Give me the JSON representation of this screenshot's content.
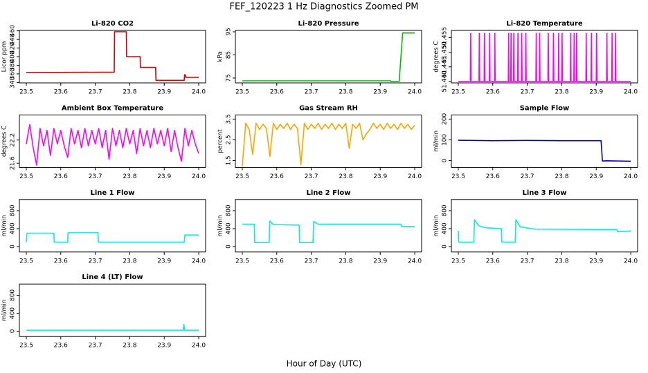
{
  "title": "FEF_120223  1 Hz Diagnostics Zoomed PM",
  "x_label": "Hour of Day (UTC)",
  "chart_data": [
    {
      "type": "line",
      "title": "Li-820 CO2",
      "y_label": "Licor ppm",
      "color": "#dd0000",
      "x": [
        23.5,
        23.755,
        23.756,
        23.79,
        23.791,
        23.83,
        23.831,
        23.875,
        23.876,
        23.958,
        23.959,
        23.961,
        23.962,
        24.0
      ],
      "values": [
        363,
        364,
        458,
        458,
        400,
        400,
        375,
        375,
        345,
        345,
        358,
        358,
        352,
        352
      ],
      "xlim": [
        23.48,
        24.02
      ],
      "xticks": [
        23.5,
        23.6,
        23.7,
        23.8,
        23.9,
        {
          "value": 24,
          "label": "24.0"
        }
      ],
      "ylim": [
        339,
        461
      ],
      "yticks": [
        340,
        360,
        380,
        400,
        420,
        440,
        460
      ]
    },
    {
      "type": "line",
      "title": "Li-820 Pressure",
      "y_label": "kPa",
      "color": "#00bb00",
      "x": [
        23.5,
        23.93,
        23.931,
        23.955,
        23.96,
        23.965,
        24.0
      ],
      "values": [
        73.8,
        73.8,
        73.5,
        73.5,
        84,
        94.5,
        94.5
      ],
      "xlim": [
        23.48,
        24.02
      ],
      "xticks": [
        23.5,
        23.6,
        23.7,
        23.8,
        23.9,
        {
          "value": 24,
          "label": "24.0"
        }
      ],
      "ylim": [
        72.9,
        95.6
      ],
      "yticks": [
        75,
        85,
        95
      ]
    },
    {
      "type": "line",
      "title": "Li-820 Temperature",
      "y_label": "degrees C",
      "color": "#ff00ff",
      "x": [
        23.5,
        23.535,
        23.536,
        23.537,
        23.56,
        23.561,
        23.562,
        23.575,
        23.576,
        23.577,
        23.59,
        23.591,
        23.592,
        23.605,
        23.606,
        23.607,
        23.645,
        23.646,
        23.647,
        23.652,
        23.653,
        23.654,
        23.66,
        23.661,
        23.662,
        23.672,
        23.673,
        23.674,
        23.683,
        23.684,
        23.685,
        23.695,
        23.696,
        23.697,
        23.725,
        23.726,
        23.727,
        23.735,
        23.736,
        23.737,
        23.76,
        23.761,
        23.762,
        23.775,
        23.776,
        23.777,
        23.79,
        23.791,
        23.792,
        23.8,
        23.801,
        23.802,
        23.825,
        23.826,
        23.827,
        23.835,
        23.836,
        23.837,
        23.842,
        23.843,
        23.844,
        23.87,
        23.871,
        23.872,
        23.885,
        23.886,
        23.887,
        23.9,
        23.901,
        23.902,
        23.93,
        23.931,
        23.932,
        23.945,
        23.946,
        23.947,
        23.955,
        23.956,
        23.957,
        24.0
      ],
      "values": [
        51.44,
        51.44,
        51.4565,
        51.44,
        51.44,
        51.4565,
        51.44,
        51.44,
        51.4565,
        51.44,
        51.44,
        51.4565,
        51.44,
        51.44,
        51.4565,
        51.44,
        51.44,
        51.4565,
        51.44,
        51.44,
        51.4565,
        51.44,
        51.44,
        51.4565,
        51.44,
        51.44,
        51.4565,
        51.44,
        51.44,
        51.4565,
        51.44,
        51.44,
        51.4565,
        51.44,
        51.44,
        51.4565,
        51.44,
        51.44,
        51.4565,
        51.44,
        51.44,
        51.4565,
        51.44,
        51.44,
        51.4565,
        51.44,
        51.44,
        51.4565,
        51.44,
        51.44,
        51.4565,
        51.44,
        51.44,
        51.4565,
        51.44,
        51.44,
        51.4565,
        51.44,
        51.44,
        51.4565,
        51.44,
        51.44,
        51.4565,
        51.44,
        51.44,
        51.4565,
        51.44,
        51.44,
        51.4565,
        51.44,
        51.44,
        51.4565,
        51.44,
        51.44,
        51.4565,
        51.44,
        51.44,
        51.4565,
        51.44,
        51.44
      ],
      "xlim": [
        23.48,
        24.02
      ],
      "xticks": [
        23.5,
        23.6,
        23.7,
        23.8,
        23.9,
        {
          "value": 24,
          "label": "24.0"
        }
      ],
      "ylim": [
        51.4395,
        51.4575
      ],
      "yticks": [
        {
          "value": 51.44,
          "label": "51.440"
        },
        51.445,
        {
          "value": 51.45,
          "label": "51.450"
        },
        51.455
      ]
    },
    {
      "type": "line",
      "title": "Ambient Box Temperature",
      "y_label": "degrees C",
      "color": "#ff00ff",
      "x": [
        23.5,
        23.51,
        23.52,
        23.53,
        23.54,
        23.55,
        23.56,
        23.57,
        23.58,
        23.59,
        23.6,
        23.61,
        23.62,
        23.63,
        23.64,
        23.65,
        23.66,
        23.67,
        23.68,
        23.69,
        23.7,
        23.71,
        23.72,
        23.73,
        23.74,
        23.75,
        23.76,
        23.77,
        23.78,
        23.79,
        23.8,
        23.81,
        23.82,
        23.83,
        23.84,
        23.85,
        23.86,
        23.87,
        23.88,
        23.89,
        23.9,
        23.91,
        23.92,
        23.93,
        23.94,
        23.95,
        23.96,
        23.97,
        23.98,
        23.99,
        24.0
      ],
      "values": [
        22.1,
        22.6,
        22.0,
        21.55,
        22.5,
        22.05,
        22.45,
        21.8,
        22.5,
        22.1,
        22.45,
        22.05,
        21.75,
        22.5,
        22.1,
        22.45,
        22.0,
        22.5,
        22.05,
        22.45,
        22.1,
        22.5,
        22.0,
        22.45,
        21.7,
        22.5,
        22.05,
        22.45,
        22.0,
        22.5,
        22.1,
        22.45,
        21.85,
        22.5,
        22.05,
        22.45,
        22.0,
        22.5,
        22.1,
        22.45,
        22.05,
        22.5,
        21.9,
        22.45,
        22.0,
        21.65,
        22.5,
        22.05,
        22.45,
        22.1,
        21.85
      ],
      "xlim": [
        23.48,
        24.02
      ],
      "xticks": [
        23.5,
        23.6,
        23.7,
        23.8,
        23.9,
        {
          "value": 24,
          "label": "24.0"
        }
      ],
      "ylim": [
        21.49,
        22.85
      ],
      "yticks": [
        21.6,
        22.2
      ]
    },
    {
      "type": "line",
      "title": "Gas Stream RH",
      "y_label": "percent",
      "color": "#ffa500",
      "x": [
        23.5,
        23.51,
        23.52,
        23.53,
        23.54,
        23.55,
        23.56,
        23.57,
        23.58,
        23.59,
        23.6,
        23.61,
        23.62,
        23.63,
        23.64,
        23.65,
        23.66,
        23.67,
        23.68,
        23.69,
        23.7,
        23.71,
        23.72,
        23.73,
        23.74,
        23.75,
        23.76,
        23.77,
        23.78,
        23.79,
        23.8,
        23.81,
        23.82,
        23.83,
        23.84,
        23.85,
        23.86,
        23.87,
        23.88,
        23.89,
        23.9,
        23.91,
        23.92,
        23.93,
        23.94,
        23.95,
        23.96,
        23.97,
        23.98,
        23.99,
        24.0
      ],
      "values": [
        1.25,
        3.3,
        3.0,
        1.8,
        3.3,
        3.0,
        3.25,
        3.05,
        1.7,
        3.3,
        3.0,
        3.25,
        3.05,
        3.3,
        3.0,
        3.25,
        3.05,
        1.3,
        3.3,
        3.0,
        3.25,
        3.05,
        3.3,
        3.0,
        3.25,
        3.05,
        3.3,
        3.0,
        3.25,
        3.05,
        3.3,
        2.1,
        3.25,
        3.05,
        3.3,
        2.5,
        2.8,
        3.0,
        3.3,
        3.05,
        3.25,
        3.0,
        3.3,
        3.05,
        3.25,
        3.0,
        3.3,
        3.05,
        3.25,
        3.0,
        3.2
      ],
      "xlim": [
        23.48,
        24.02
      ],
      "xticks": [
        23.5,
        23.6,
        23.7,
        23.8,
        23.9,
        {
          "value": 24,
          "label": "24.0"
        }
      ],
      "ylim": [
        1.17,
        3.7
      ],
      "yticks": [
        1.5,
        2.5,
        3.5
      ]
    },
    {
      "type": "line",
      "title": "Sample Flow",
      "y_label": "ml/min",
      "color": "#0000cc",
      "x": [
        23.5,
        23.6,
        23.7,
        23.8,
        23.914,
        23.918,
        23.93,
        24.0
      ],
      "values": [
        98,
        96,
        97,
        96,
        96,
        -2,
        -1,
        -3
      ],
      "xlim": [
        23.48,
        24.02
      ],
      "xticks": [
        23.5,
        23.6,
        23.7,
        23.8,
        23.9,
        {
          "value": 24,
          "label": "24.0"
        }
      ],
      "ylim": [
        -33,
        220
      ],
      "yticks": [
        0,
        100,
        200
      ]
    },
    {
      "type": "line",
      "title": "Line 1 Flow",
      "y_label": "ml/min",
      "color": "#00eeee",
      "x": [
        23.5,
        23.502,
        23.58,
        23.581,
        23.62,
        23.621,
        23.708,
        23.709,
        23.958,
        23.96,
        24.0
      ],
      "values": [
        100,
        300,
        300,
        100,
        100,
        310,
        310,
        100,
        100,
        260,
        260
      ],
      "xlim": [
        23.48,
        24.02
      ],
      "xticks": [
        23.5,
        23.6,
        23.7,
        23.8,
        23.9,
        {
          "value": 24,
          "label": "24.0"
        }
      ],
      "ylim": [
        -120,
        1050
      ],
      "yticks": [
        0,
        400,
        800
      ]
    },
    {
      "type": "line",
      "title": "Line 2 Flow",
      "y_label": "ml/min",
      "color": "#00eeee",
      "x": [
        23.5,
        23.535,
        23.536,
        23.578,
        23.58,
        23.59,
        23.665,
        23.666,
        23.705,
        23.707,
        23.72,
        23.96,
        23.962,
        24.0
      ],
      "values": [
        500,
        500,
        90,
        90,
        570,
        490,
        480,
        90,
        90,
        560,
        500,
        500,
        450,
        450
      ],
      "xlim": [
        23.48,
        24.02
      ],
      "xticks": [
        23.5,
        23.6,
        23.7,
        23.8,
        23.9,
        {
          "value": 24,
          "label": "24.0"
        }
      ],
      "ylim": [
        -120,
        1050
      ],
      "yticks": [
        0,
        400,
        800
      ]
    },
    {
      "type": "line",
      "title": "Line 3 Flow",
      "y_label": "ml/min",
      "color": "#00eeee",
      "x": [
        23.5,
        23.501,
        23.545,
        23.547,
        23.56,
        23.58,
        23.625,
        23.626,
        23.665,
        23.667,
        23.68,
        23.72,
        23.96,
        23.962,
        24.0
      ],
      "values": [
        350,
        100,
        100,
        600,
        460,
        420,
        400,
        100,
        100,
        600,
        440,
        390,
        380,
        330,
        350
      ],
      "xlim": [
        23.48,
        24.02
      ],
      "xticks": [
        23.5,
        23.6,
        23.7,
        23.8,
        23.9,
        {
          "value": 24,
          "label": "24.0"
        }
      ],
      "ylim": [
        -120,
        1050
      ],
      "yticks": [
        0,
        400,
        800
      ]
    },
    {
      "type": "line",
      "title": "Line 4 (LT) Flow",
      "y_label": "ml/min",
      "color": "#00eeee",
      "x": [
        23.5,
        23.955,
        23.957,
        23.959,
        24.0
      ],
      "values": [
        20,
        20,
        150,
        20,
        20
      ],
      "xlim": [
        23.48,
        24.02
      ],
      "xticks": [
        23.5,
        23.6,
        23.7,
        23.8,
        23.9,
        {
          "value": 24,
          "label": "24.0"
        }
      ],
      "ylim": [
        -120,
        1050
      ],
      "yticks": [
        0,
        400,
        800
      ]
    }
  ]
}
